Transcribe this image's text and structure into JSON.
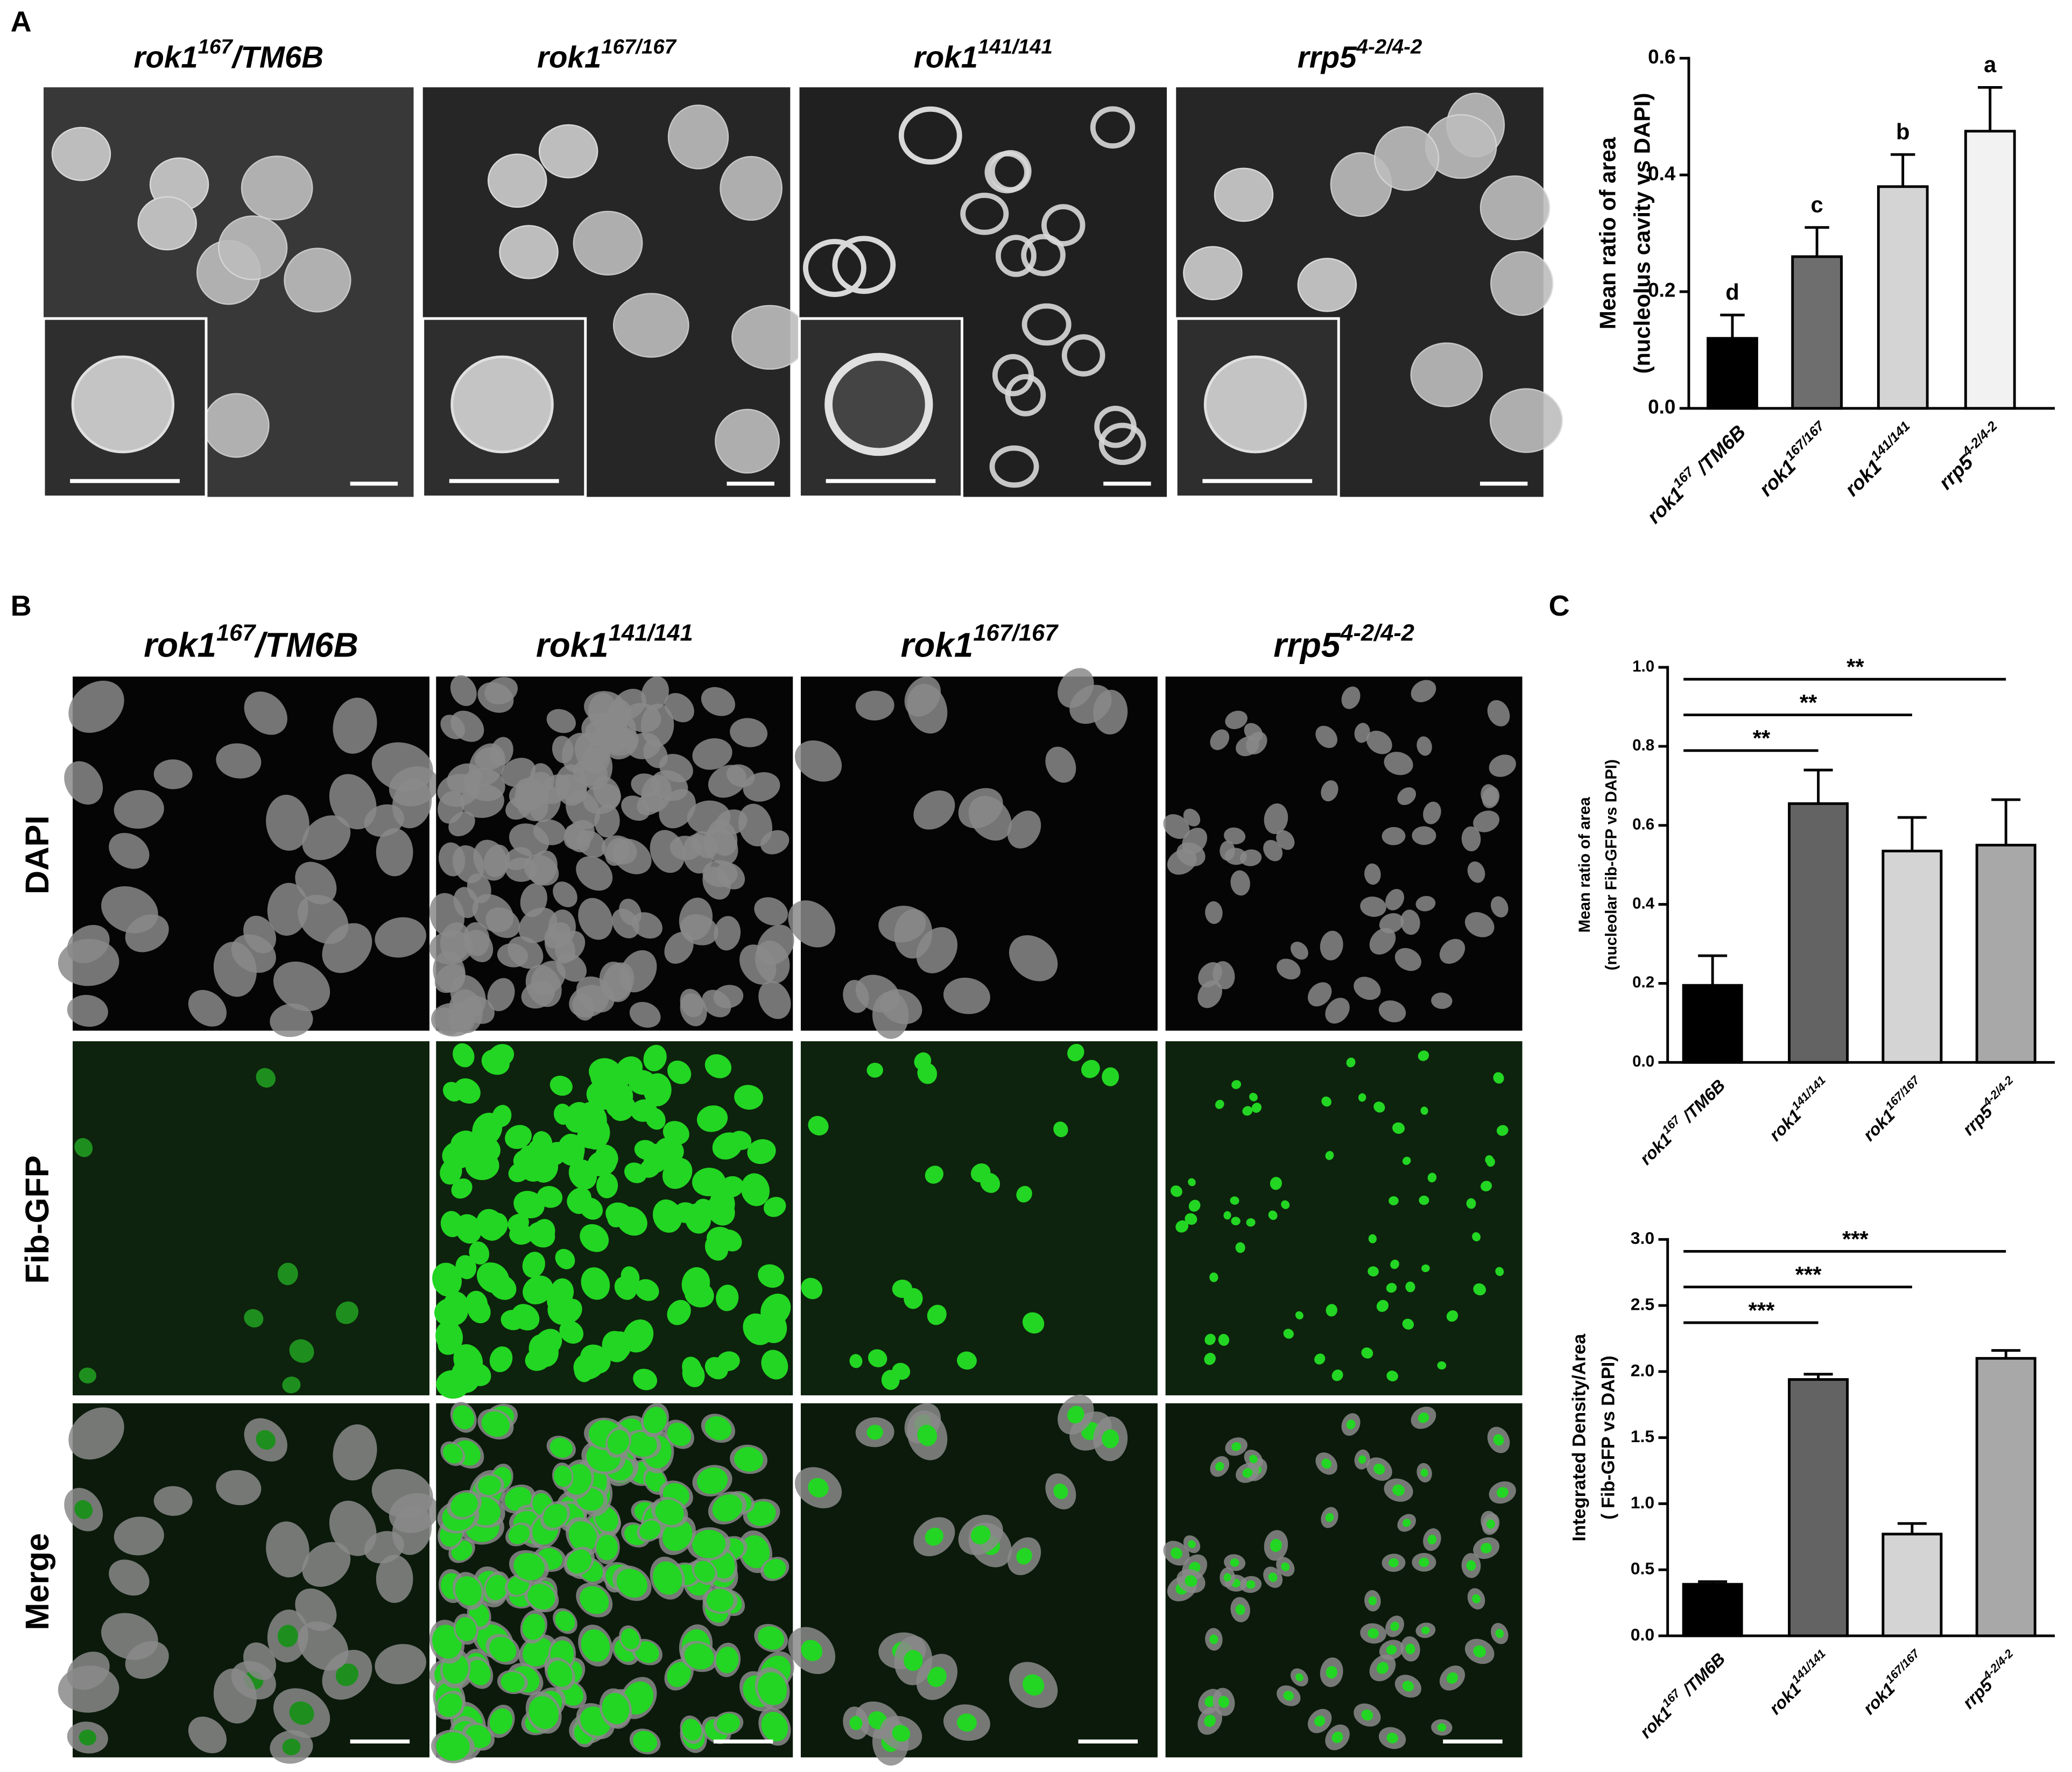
{
  "panels": {
    "a": "A",
    "b": "B",
    "c": "C"
  },
  "panel_a_images": [
    {
      "gene": "rok1",
      "allele": "167",
      "suffix": "/TM6B"
    },
    {
      "gene": "rok1",
      "allele": "167/167"
    },
    {
      "gene": "rok1",
      "allele": "141/141"
    },
    {
      "gene": "rrp5",
      "allele": "4-2/4-2"
    }
  ],
  "panel_b_columns": [
    {
      "gene": "rok1",
      "allele": "167",
      "suffix": "/TM6B"
    },
    {
      "gene": "rok1",
      "allele": "141/141"
    },
    {
      "gene": "rok1",
      "allele": "167/167"
    },
    {
      "gene": "rrp5",
      "allele": "4-2/4-2"
    }
  ],
  "panel_b_rows": [
    "DAPI",
    "Fib-GFP",
    "Merge"
  ],
  "chart_data": [
    {
      "type": "bar",
      "y_label": [
        "Mean ratio of area",
        "(nucleolus cavity vs DAPI)"
      ],
      "categories": [
        {
          "gene": "rok1",
          "allele": "167",
          "suffix": " /TM6B"
        },
        {
          "gene": "rok1",
          "allele": "167/167"
        },
        {
          "gene": "rok1",
          "allele": "141/141"
        },
        {
          "gene": "rrp5",
          "allele": "4-2/4-2"
        }
      ],
      "values": [
        0.12,
        0.26,
        0.38,
        0.475
      ],
      "errors": [
        0.04,
        0.05,
        0.055,
        0.075
      ],
      "colors": [
        "#000000",
        "#6e6e6e",
        "#d4d4d4",
        "#f2f2f2"
      ],
      "annotations": [
        "d",
        "c",
        "b",
        "a"
      ],
      "ylim": [
        0,
        0.6
      ],
      "yticks": [
        {
          "value": 0,
          "label": "0.0"
        },
        {
          "value": 0.2,
          "label": "0.2"
        },
        {
          "value": 0.4,
          "label": "0.4"
        },
        {
          "value": 0.6,
          "label": "0.6"
        }
      ]
    },
    {
      "type": "bar",
      "y_label": [
        "Mean ratio of area",
        "(nucleolar Fib-GFP vs DAPI)"
      ],
      "categories": [
        {
          "gene": "rok1",
          "allele": "167",
          "suffix": " /TM6B"
        },
        {
          "gene": "rok1",
          "allele": "141/141"
        },
        {
          "gene": "rok1",
          "allele": "167/167"
        },
        {
          "gene": "rrp5",
          "allele": "4-2/4-2"
        }
      ],
      "values": [
        0.195,
        0.655,
        0.535,
        0.55
      ],
      "errors": [
        0.075,
        0.085,
        0.085,
        0.115
      ],
      "colors": [
        "#000000",
        "#636363",
        "#d4d4d4",
        "#a8a8a8"
      ],
      "brackets": [
        {
          "label": "**",
          "pair": [
            0,
            1
          ]
        },
        {
          "label": "**",
          "pair": [
            0,
            2
          ]
        },
        {
          "label": "**",
          "pair": [
            0,
            3
          ]
        }
      ],
      "ylim": [
        0,
        1
      ],
      "yticks": [
        {
          "value": 0,
          "label": "0.0"
        },
        {
          "value": 0.2,
          "label": "0.2"
        },
        {
          "value": 0.4,
          "label": "0.4"
        },
        {
          "value": 0.6,
          "label": "0.6"
        },
        {
          "value": 0.8,
          "label": "0.8"
        },
        {
          "value": 1,
          "label": "1.0"
        }
      ]
    },
    {
      "type": "bar",
      "y_label": [
        "Integrated Density/Area",
        "( Fib-GFP vs DAPI)"
      ],
      "categories": [
        {
          "gene": "rok1",
          "allele": "167",
          "suffix": " /TM6B"
        },
        {
          "gene": "rok1",
          "allele": "141/141"
        },
        {
          "gene": "rok1",
          "allele": "167/167"
        },
        {
          "gene": "rrp5",
          "allele": "4-2/4-2"
        }
      ],
      "values": [
        0.39,
        1.94,
        0.77,
        2.1
      ],
      "errors": [
        0.02,
        0.04,
        0.08,
        0.06
      ],
      "colors": [
        "#000000",
        "#636363",
        "#d4d4d4",
        "#a8a8a8"
      ],
      "brackets": [
        {
          "label": "***",
          "pair": [
            0,
            1
          ]
        },
        {
          "label": "***",
          "pair": [
            0,
            2
          ]
        },
        {
          "label": "***",
          "pair": [
            0,
            3
          ]
        }
      ],
      "ylim": [
        0,
        3
      ],
      "yticks": [
        {
          "value": 0,
          "label": "0.0"
        },
        {
          "value": 0.5,
          "label": "0.5"
        },
        {
          "value": 1,
          "label": "1.0"
        },
        {
          "value": 1.5,
          "label": "1.5"
        },
        {
          "value": 2,
          "label": "2.0"
        },
        {
          "value": 2.5,
          "label": "2.5"
        },
        {
          "value": 3,
          "label": "3.0"
        }
      ]
    }
  ]
}
